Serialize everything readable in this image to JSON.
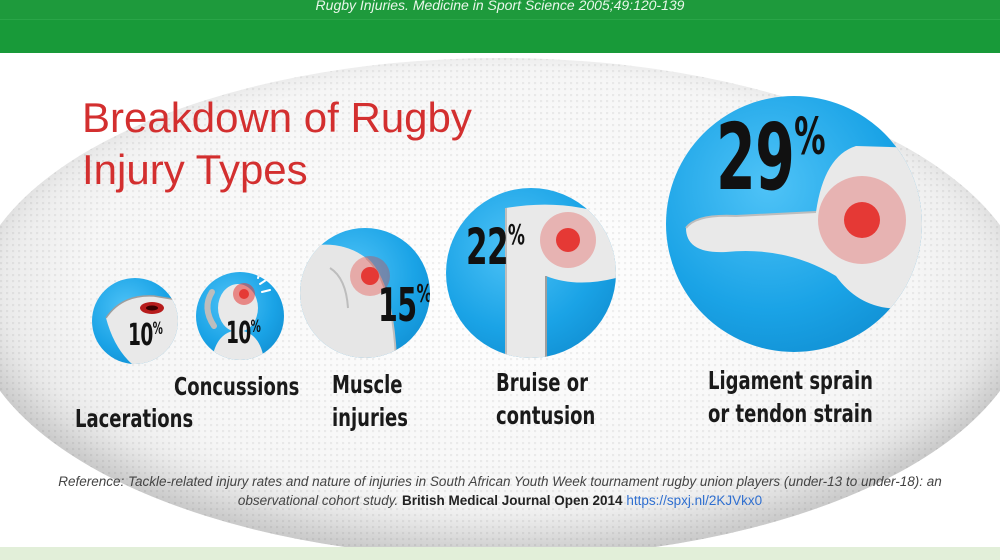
{
  "header": {
    "citation": "Rugby Injuries. Medicine in Sport Science 2005;49:120-139"
  },
  "title": {
    "line1": "Breakdown of Rugby",
    "line2": "Injury Types"
  },
  "chart_data": {
    "type": "bubble",
    "title": "Breakdown of Rugby Injury Types",
    "unit": "%",
    "categories": [
      "Lacerations",
      "Concussions",
      "Muscle injuries",
      "Bruise or contusion",
      "Ligament sprain or tendon strain"
    ],
    "values": [
      10,
      10,
      15,
      22,
      29
    ]
  },
  "items": [
    {
      "value": "10",
      "unit": "%",
      "label_lines": [
        "Lacerations"
      ]
    },
    {
      "value": "10",
      "unit": "%",
      "label_lines": [
        "Concussions"
      ]
    },
    {
      "value": "15",
      "unit": "%",
      "label_lines": [
        "Muscle",
        "injuries"
      ]
    },
    {
      "value": "22",
      "unit": "%",
      "label_lines": [
        "Bruise or",
        "contusion"
      ]
    },
    {
      "value": "29",
      "unit": "%",
      "label_lines": [
        "Ligament sprain",
        "or tendon strain"
      ]
    }
  ],
  "reference": {
    "text": "Reference: Tackle-related injury rates and nature of injuries in South African Youth Week tournament rugby union players (under-13 to under-18): an observational cohort study.",
    "journal": "British Medical Journal Open 2014",
    "link": "https://spxj.nl/2KJVkx0"
  },
  "colors": {
    "green": "#1e9a3c",
    "title_red": "#d32f2f",
    "circle_blue": "#1aa3e6",
    "injury_red": "#e53935"
  },
  "icons": [
    "laceration-icon",
    "concussion-icon",
    "muscle-icon",
    "bruise-icon",
    "ankle-sprain-icon"
  ]
}
